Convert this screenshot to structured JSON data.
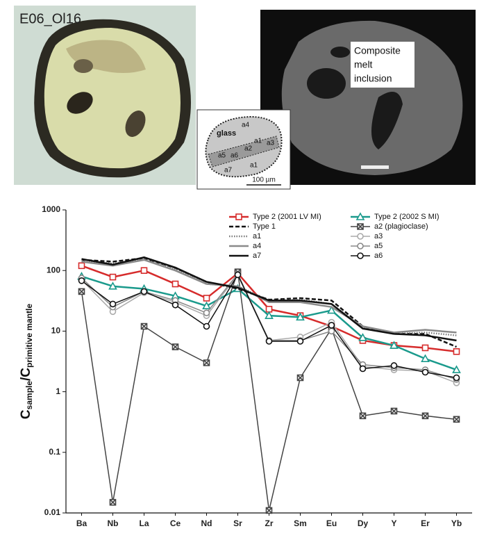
{
  "figure": {
    "sample_label": "E06_Ol16",
    "sem_label": [
      "Composite",
      "melt",
      "inclusion"
    ],
    "inset": {
      "glass": "glass",
      "points": [
        "a4",
        "a1",
        "a3",
        "a5",
        "a6",
        "a2",
        "a7",
        "a1"
      ],
      "scale": "100 µm"
    }
  },
  "chart_data": {
    "type": "line",
    "y_label": {
      "c1": "C",
      "sub1": "sample",
      "c2": "/C",
      "sub2": "primitive mantle"
    },
    "categories": [
      "Ba",
      "Nb",
      "La",
      "Ce",
      "Nd",
      "Sr",
      "Zr",
      "Sm",
      "Eu",
      "Dy",
      "Y",
      "Er",
      "Yb"
    ],
    "log_scale": true,
    "ylim": [
      0.01,
      1000
    ],
    "yticks": [
      0.01,
      0.1,
      1,
      10,
      100,
      1000
    ],
    "grid": false,
    "legend": "top-right",
    "series": [
      {
        "name": "Type 2 (2001 LV MI)",
        "color": "#d62b2b",
        "marker": "square",
        "dash": "solid",
        "width": 2.5,
        "values": [
          120,
          78,
          100,
          60,
          35,
          90,
          23,
          18,
          12,
          7,
          5.8,
          5.3,
          4.6
        ]
      },
      {
        "name": "Type 2 (2002 S MI)",
        "color": "#1a9a8c",
        "marker": "triangle",
        "dash": "solid",
        "width": 2.5,
        "values": [
          80,
          55,
          50,
          38,
          26,
          50,
          18,
          17,
          22,
          7.8,
          5.8,
          3.5,
          2.3
        ]
      },
      {
        "name": "Type 1",
        "color": "#111111",
        "marker": "none",
        "dash": "dashed",
        "width": 2.5,
        "values": [
          150,
          140,
          160,
          110,
          65,
          50,
          33,
          35,
          32,
          12,
          9,
          9,
          5.5
        ]
      },
      {
        "name": "a2 (plagioclase)",
        "color": "#444444",
        "marker": "xsquare",
        "dash": "solid",
        "width": 1.5,
        "values": [
          45,
          0.015,
          12,
          5.5,
          3,
          95,
          0.011,
          1.7,
          11,
          0.4,
          0.48,
          0.4,
          0.35
        ]
      },
      {
        "name": "a1",
        "color": "#777777",
        "marker": "none",
        "dash": "dotted",
        "width": 2.5,
        "values": [
          145,
          130,
          155,
          105,
          60,
          55,
          32,
          33,
          28,
          11.5,
          9,
          9.5,
          8.5
        ]
      },
      {
        "name": "a3",
        "color": "#aaaaaa",
        "marker": "circle",
        "dash": "solid",
        "width": 1.5,
        "values": [
          70,
          21,
          43,
          30,
          18,
          85,
          7,
          8,
          14,
          2.6,
          2.3,
          2.2,
          1.4
        ]
      },
      {
        "name": "a4",
        "color": "#8a8a8a",
        "marker": "none",
        "dash": "solid",
        "width": 2.5,
        "values": [
          140,
          120,
          150,
          100,
          60,
          55,
          30,
          30,
          25,
          12,
          9.5,
          10.5,
          9.5
        ]
      },
      {
        "name": "a5",
        "color": "#888888",
        "marker": "circle",
        "dash": "solid",
        "width": 1.5,
        "values": [
          75,
          25,
          45,
          32,
          20,
          88,
          7,
          7,
          10,
          2.8,
          2.5,
          2.3,
          1.6
        ]
      },
      {
        "name": "a7",
        "color": "#111111",
        "marker": "none",
        "dash": "solid",
        "width": 2.5,
        "values": [
          155,
          125,
          165,
          112,
          65,
          52,
          32,
          32,
          28,
          11,
          9,
          8.5,
          7
        ]
      },
      {
        "name": "a6",
        "color": "#111111",
        "marker": "circle",
        "dash": "solid",
        "width": 1.5,
        "values": [
          68,
          28,
          45,
          27,
          12,
          85,
          6.8,
          6.8,
          12.5,
          2.4,
          2.7,
          2.1,
          1.7
        ]
      }
    ]
  }
}
